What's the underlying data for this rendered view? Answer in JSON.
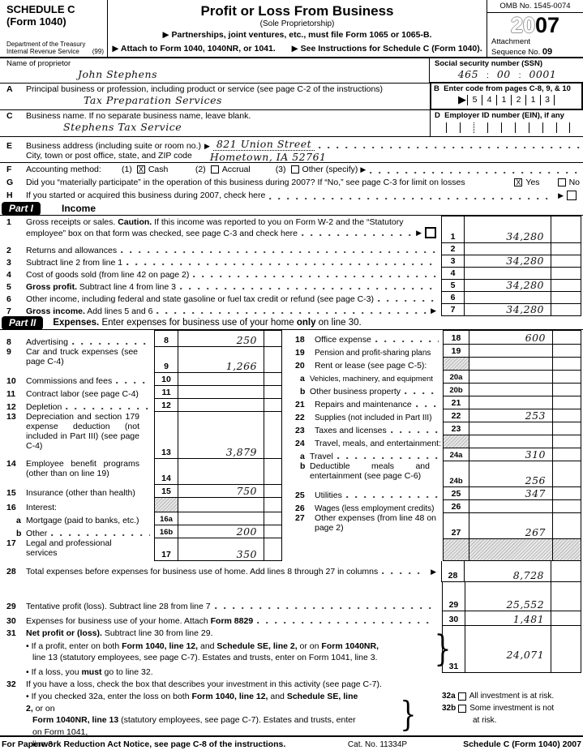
{
  "header": {
    "schedule_c": "SCHEDULE C",
    "form_1040": "(Form 1040)",
    "dept": "Department of the Treasury",
    "irs": "Internal Revenue Service",
    "irs_note": "(99)",
    "title": "Profit or Loss From Business",
    "subtitle": "(Sole Proprietorship)",
    "instr1": "▶ Partnerships, joint ventures, etc., must file Form 1065 or 1065-B.",
    "instr2a": "▶ Attach to Form 1040, 1040NR, or 1041.",
    "instr2b": "▶ See Instructions for Schedule C (Form 1040).",
    "omb": "OMB No. 1545-0074",
    "year_20": "20",
    "year_07": "07",
    "attachment": "Attachment",
    "sequence": "Sequence No. ",
    "sequence_no": "09"
  },
  "top": {
    "proprietor_label": "Name of proprietor",
    "proprietor_value": "John Stephens",
    "ssn_label": "Social security number (SSN)",
    "ssn1": "465",
    "ssn2": "00",
    "ssn3": "0001",
    "ssn_sep": ":",
    "a": {
      "letter": "A",
      "label": "Principal business or profession, including product or service (see page C-2 of the instructions)",
      "value": "Tax Preparation Services"
    },
    "b": {
      "letter": "B",
      "label": "Enter code from pages C-8, 9, & 10",
      "arrow": "▶",
      "code": [
        "5",
        "4",
        "1",
        "2",
        "1",
        "3"
      ]
    },
    "c": {
      "letter": "C",
      "label": "Business name. If no separate business name, leave blank.",
      "value": "Stephens Tax Service"
    },
    "d": {
      "letter": "D",
      "label": "Employer ID number (EIN), if any"
    },
    "e": {
      "letter": "E",
      "label": "Business address (including suite or room no.)",
      "arrow": "▶",
      "value": "821 Union Street",
      "label2": "City, town or post office, state, and ZIP code",
      "value2": "Hometown, IA 52761"
    },
    "f": {
      "letter": "F",
      "label": "Accounting method:",
      "opt1_num": "(1)",
      "opt1": "Cash",
      "opt1_mark": "X",
      "opt2_num": "(2)",
      "opt2": "Accrual",
      "opt2_mark": "",
      "opt3_num": "(3)",
      "opt3": "Other (specify)",
      "arrow": "▶"
    },
    "g": {
      "letter": "G",
      "label": "Did you “materially participate” in the operation of this business during 2007? If “No,” see page C-3 for limit on losses",
      "yes": "Yes",
      "yes_mark": "X",
      "no": "No",
      "no_mark": ""
    },
    "h": {
      "letter": "H",
      "label": "If you started or acquired this business during 2007, check here",
      "arrow": "▶",
      "mark": ""
    }
  },
  "part1": {
    "badge": "Part I",
    "title": "Income",
    "r1": {
      "n": "1",
      "segs": [
        "Gross receipts or sales. ",
        "Caution.",
        " If this income was reported to you on Form W-2 and the “Statutory"
      ],
      "line2": "employee” box on that form was checked, see page C-3 and check here",
      "arrow": "▶",
      "mark": "",
      "v": "34,280"
    },
    "r2": {
      "n": "2",
      "label": "Returns and allowances",
      "v": ""
    },
    "r3": {
      "n": "3",
      "label": "Subtract line 2 from line 1",
      "v": "34,280"
    },
    "r4": {
      "n": "4",
      "label": "Cost of goods sold (from line 42 on page 2)",
      "v": ""
    },
    "r5": {
      "n": "5",
      "segs": [
        "",
        "Gross profit.",
        " Subtract line 4 from line 3"
      ],
      "v": "34,280"
    },
    "r6": {
      "n": "6",
      "label": "Other income, including federal and state gasoline or fuel tax credit or refund (see page C-3)",
      "v": ""
    },
    "r7": {
      "n": "7",
      "segs": [
        "",
        "Gross income.",
        " Add lines 5 and 6"
      ],
      "arrow": "▶",
      "v": "34,280"
    }
  },
  "part2": {
    "badge": "Part II",
    "title_segs": [
      "",
      "Expenses.",
      " Enter expenses for business use of your home ",
      "only",
      " on line 30."
    ],
    "left": [
      {
        "n": "8",
        "label": "Advertising",
        "num": "8",
        "v": "250"
      },
      {
        "n": "9",
        "label": "Car and truck expenses (see page C-4)",
        "num": "9",
        "v": "1,266"
      },
      {
        "n": "10",
        "label": "Commissions and fees",
        "num": "10",
        "v": ""
      },
      {
        "n": "11",
        "label": "Contract labor (see page C-4)",
        "num": "11",
        "v": ""
      },
      {
        "n": "12",
        "label": "Depletion",
        "num": "12",
        "v": ""
      },
      {
        "n": "13",
        "label": "Depreciation and section 179 expense deduction (not included in Part III) (see page C-4)",
        "num": "13",
        "v": "3,879"
      },
      {
        "n": "14",
        "label": "Employee benefit programs (other than on line 19)",
        "num": "14",
        "v": ""
      },
      {
        "n": "15",
        "label": "Insurance (other than health)",
        "num": "15",
        "v": "750"
      },
      {
        "n": "16",
        "label": "Interest:",
        "num": "",
        "v": ""
      },
      {
        "n": "a",
        "label": "Mortgage (paid to banks, etc.)",
        "num": "16a",
        "v": ""
      },
      {
        "n": "b",
        "label": "Other",
        "num": "16b",
        "v": "200"
      },
      {
        "n": "17",
        "label": "Legal and professional services",
        "num": "17",
        "v": "350"
      }
    ],
    "right": [
      {
        "n": "18",
        "label": "Office expense",
        "num": "18",
        "v": "600"
      },
      {
        "n": "19",
        "label": "Pension and profit-sharing plans",
        "num": "19",
        "v": ""
      },
      {
        "n": "20",
        "label": "Rent or lease (see page C-5):",
        "num": "",
        "v": ""
      },
      {
        "n": "a",
        "label": "Vehicles, machinery, and equipment",
        "num": "20a",
        "v": ""
      },
      {
        "n": "b",
        "label": "Other business property",
        "num": "20b",
        "v": ""
      },
      {
        "n": "21",
        "label": "Repairs and maintenance",
        "num": "21",
        "v": ""
      },
      {
        "n": "22",
        "label": "Supplies (not included in Part III)",
        "num": "22",
        "v": "253"
      },
      {
        "n": "23",
        "label": "Taxes and licenses",
        "num": "23",
        "v": ""
      },
      {
        "n": "24",
        "label": "Travel, meals, and entertainment:",
        "num": "",
        "v": ""
      },
      {
        "n": "a",
        "label": "Travel",
        "num": "24a",
        "v": "310"
      },
      {
        "n": "b",
        "label": "Deductible meals and entertainment (see page C-6)",
        "num": "24b",
        "v": "256"
      },
      {
        "n": "25",
        "label": "Utilities",
        "num": "25",
        "v": "347"
      },
      {
        "n": "26",
        "label": "Wages (less employment credits)",
        "num": "26",
        "v": ""
      },
      {
        "n": "27",
        "label": "Other expenses (from line 48 on page 2)",
        "num": "27",
        "v": "267"
      }
    ]
  },
  "totals": {
    "r28": {
      "n": "28",
      "label": "Total expenses before expenses for business use of home. Add lines 8 through 27 in columns",
      "arrow": "▶",
      "v": "8,728"
    },
    "r29": {
      "n": "29",
      "label": "Tentative profit (loss). Subtract line 28 from line 7",
      "v": "25,552"
    },
    "r30": {
      "n": "30",
      "segs": [
        "Expenses for business use of your home. Attach ",
        "Form 8829"
      ],
      "v": "1,481"
    },
    "r31": {
      "n": "31",
      "segs": [
        "",
        "Net profit or (loss).",
        " Subtract line 30 from line 29."
      ],
      "b1l1_segs": [
        "• If a profit, enter on both ",
        "Form 1040, line 12,",
        " and ",
        "Schedule SE, line 2,",
        " or on ",
        "Form 1040NR,"
      ],
      "b1l2": "line 13 (statutory employees, see page C-7). Estates and trusts, enter on Form 1041, line 3.",
      "b2_segs": [
        "• If a loss, you ",
        "must",
        " go to line 32."
      ],
      "v": "24,071",
      "brace": "}"
    },
    "r32": {
      "n": "32",
      "label": "If you have a loss, check the box that describes your investment in this activity (see page C-7).",
      "b1l1_segs": [
        "• If you checked 32a, enter the loss on both ",
        "Form 1040, line 12,",
        " and ",
        "Schedule SE, line 2,",
        " or on"
      ],
      "b1l2_segs": [
        "",
        "Form 1040NR, line 13",
        " (statutory employees, see page C-7). Estates and trusts, enter on Form 1041,"
      ],
      "b1l3": "line 3.",
      "b2_segs": [
        "• If you checked 32b, you ",
        "must",
        " attach ",
        "Form 6198.",
        " Your loss may be limited."
      ],
      "a_num": "32a",
      "a_label": "All investment is at risk.",
      "a_mark": "",
      "b_num": "32b",
      "b_label1": "Some investment is not",
      "b_label2": "at risk.",
      "b_mark": "",
      "brace": "}"
    }
  },
  "footer": {
    "left": "For Paperwork Reduction Act Notice, see page C-8 of the instructions.",
    "cat": "Cat. No. 11334P",
    "right": "Schedule C (Form 1040) 2007"
  }
}
